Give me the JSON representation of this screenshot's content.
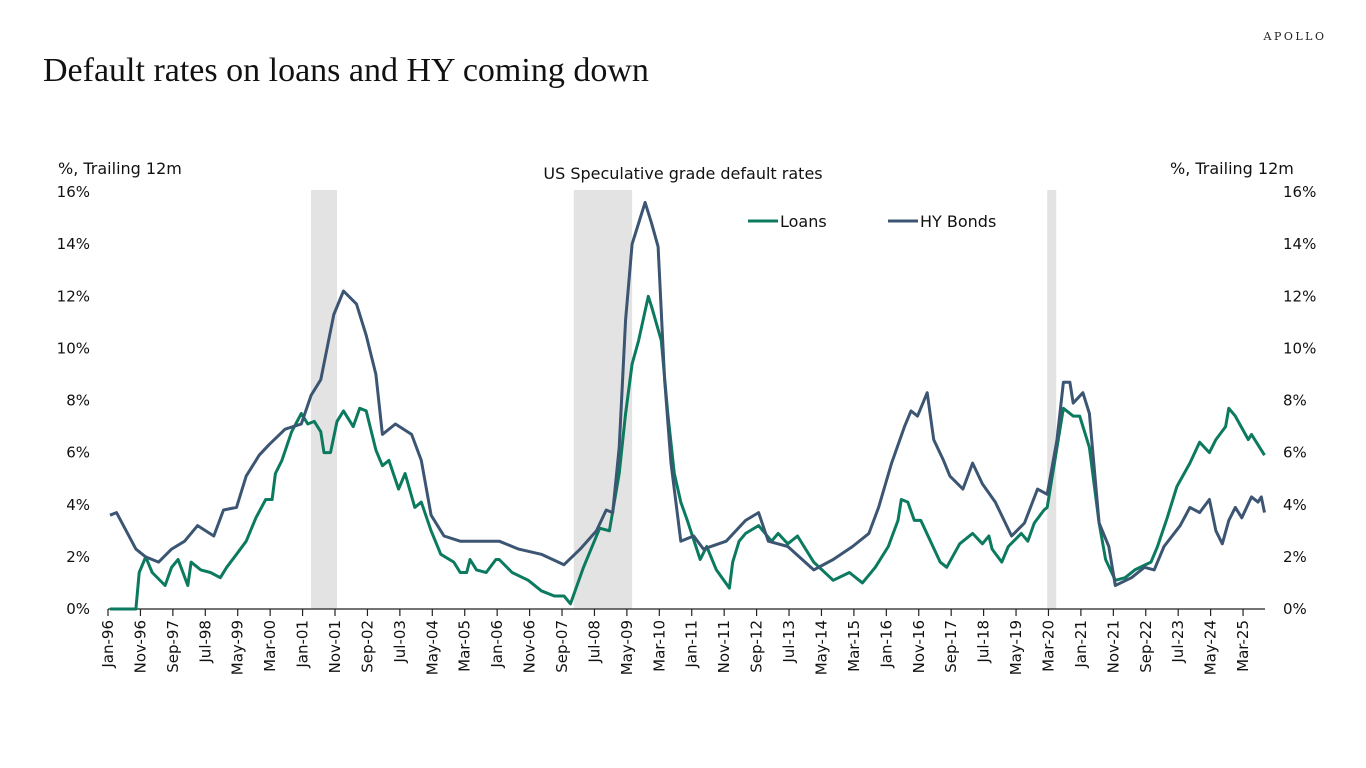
{
  "brand": {
    "logo_text": "APOLLO"
  },
  "slide": {
    "title": "Default rates on loans and HY coming down"
  },
  "chart_data": {
    "type": "line",
    "title": "US Speculative grade default rates",
    "ylabel_left": "%, Trailing 12m",
    "ylabel_right": "%, Trailing 12m",
    "ylim": [
      0,
      16
    ],
    "yticks": [
      "0%",
      "2%",
      "4%",
      "6%",
      "8%",
      "10%",
      "12%",
      "14%",
      "16%"
    ],
    "ytick_values": [
      0,
      2,
      4,
      6,
      8,
      10,
      12,
      14,
      16
    ],
    "xlim": [
      "1996-01",
      "2025-09"
    ],
    "xtick_labels": [
      "Jan-96",
      "Nov-96",
      "Sep-97",
      "Jul-98",
      "May-99",
      "Mar-00",
      "Jan-01",
      "Nov-01",
      "Sep-02",
      "Jul-03",
      "May-04",
      "Mar-05",
      "Jan-06",
      "Nov-06",
      "Sep-07",
      "Jul-08",
      "May-09",
      "Mar-10",
      "Jan-11",
      "Nov-11",
      "Sep-12",
      "Jul-13",
      "May-14",
      "Mar-15",
      "Jan-16",
      "Nov-16",
      "Sep-17",
      "Jul-18",
      "May-19",
      "Mar-20",
      "Jan-21",
      "Nov-21",
      "Sep-22",
      "Jul-23",
      "May-24",
      "Mar-25"
    ],
    "grid": false,
    "legend_position": "top-right",
    "recessions": [
      [
        "2001-03",
        "2001-11"
      ],
      [
        "2007-12",
        "2009-06"
      ],
      [
        "2020-02",
        "2020-04"
      ]
    ],
    "recession_color": "#e3e3e3",
    "series": [
      {
        "name": "Loans",
        "color": "#0b7a5f",
        "points": [
          [
            "1996-01",
            0
          ],
          [
            "1996-09",
            0
          ],
          [
            "1996-10",
            1.4
          ],
          [
            "1996-12",
            2.0
          ],
          [
            "1997-02",
            1.4
          ],
          [
            "1997-06",
            0.9
          ],
          [
            "1997-08",
            1.6
          ],
          [
            "1997-10",
            1.9
          ],
          [
            "1998-01",
            0.9
          ],
          [
            "1998-02",
            1.8
          ],
          [
            "1998-05",
            1.5
          ],
          [
            "1998-08",
            1.4
          ],
          [
            "1998-11",
            1.2
          ],
          [
            "1999-01",
            1.6
          ],
          [
            "1999-04",
            2.1
          ],
          [
            "1999-07",
            2.6
          ],
          [
            "1999-10",
            3.5
          ],
          [
            "2000-01",
            4.2
          ],
          [
            "2000-03",
            4.2
          ],
          [
            "2000-04",
            5.2
          ],
          [
            "2000-06",
            5.7
          ],
          [
            "2000-09",
            6.8
          ],
          [
            "2000-12",
            7.5
          ],
          [
            "2001-02",
            7.1
          ],
          [
            "2001-04",
            7.2
          ],
          [
            "2001-06",
            6.8
          ],
          [
            "2001-07",
            6.0
          ],
          [
            "2001-09",
            6.0
          ],
          [
            "2001-11",
            7.2
          ],
          [
            "2002-01",
            7.6
          ],
          [
            "2002-04",
            7.0
          ],
          [
            "2002-06",
            7.7
          ],
          [
            "2002-08",
            7.6
          ],
          [
            "2002-11",
            6.1
          ],
          [
            "2003-01",
            5.5
          ],
          [
            "2003-03",
            5.7
          ],
          [
            "2003-06",
            4.6
          ],
          [
            "2003-08",
            5.2
          ],
          [
            "2003-11",
            3.9
          ],
          [
            "2004-01",
            4.1
          ],
          [
            "2004-04",
            3.0
          ],
          [
            "2004-07",
            2.1
          ],
          [
            "2004-11",
            1.8
          ],
          [
            "2005-01",
            1.4
          ],
          [
            "2005-03",
            1.4
          ],
          [
            "2005-04",
            1.9
          ],
          [
            "2005-06",
            1.5
          ],
          [
            "2005-09",
            1.4
          ],
          [
            "2005-12",
            1.9
          ],
          [
            "2006-01",
            1.9
          ],
          [
            "2006-05",
            1.4
          ],
          [
            "2006-10",
            1.1
          ],
          [
            "2007-02",
            0.7
          ],
          [
            "2007-06",
            0.5
          ],
          [
            "2007-09",
            0.5
          ],
          [
            "2007-11",
            0.2
          ],
          [
            "2008-03",
            1.6
          ],
          [
            "2008-08",
            3.1
          ],
          [
            "2008-11",
            3.0
          ],
          [
            "2009-02",
            5.2
          ],
          [
            "2009-04",
            7.5
          ],
          [
            "2009-06",
            9.4
          ],
          [
            "2009-08",
            10.3
          ],
          [
            "2009-11",
            12.0
          ],
          [
            "2009-12",
            11.6
          ],
          [
            "2010-03",
            10.3
          ],
          [
            "2010-05",
            7.5
          ],
          [
            "2010-07",
            5.2
          ],
          [
            "2010-09",
            4.1
          ],
          [
            "2010-11",
            3.4
          ],
          [
            "2011-03",
            1.9
          ],
          [
            "2011-05",
            2.4
          ],
          [
            "2011-08",
            1.5
          ],
          [
            "2011-12",
            0.8
          ],
          [
            "2012-01",
            1.8
          ],
          [
            "2012-03",
            2.6
          ],
          [
            "2012-05",
            2.9
          ],
          [
            "2012-09",
            3.2
          ],
          [
            "2013-01",
            2.6
          ],
          [
            "2013-03",
            2.9
          ],
          [
            "2013-06",
            2.5
          ],
          [
            "2013-09",
            2.8
          ],
          [
            "2014-02",
            1.8
          ],
          [
            "2014-08",
            1.1
          ],
          [
            "2015-01",
            1.4
          ],
          [
            "2015-05",
            1.0
          ],
          [
            "2015-09",
            1.6
          ],
          [
            "2016-01",
            2.4
          ],
          [
            "2016-04",
            3.4
          ],
          [
            "2016-05",
            4.2
          ],
          [
            "2016-07",
            4.1
          ],
          [
            "2016-09",
            3.4
          ],
          [
            "2016-11",
            3.4
          ],
          [
            "2017-02",
            2.6
          ],
          [
            "2017-05",
            1.8
          ],
          [
            "2017-07",
            1.6
          ],
          [
            "2017-11",
            2.5
          ],
          [
            "2018-03",
            2.9
          ],
          [
            "2018-06",
            2.5
          ],
          [
            "2018-08",
            2.8
          ],
          [
            "2018-09",
            2.3
          ],
          [
            "2018-12",
            1.8
          ],
          [
            "2019-02",
            2.4
          ],
          [
            "2019-06",
            2.9
          ],
          [
            "2019-08",
            2.6
          ],
          [
            "2019-10",
            3.3
          ],
          [
            "2020-01",
            3.8
          ],
          [
            "2020-02",
            3.9
          ],
          [
            "2020-05",
            6.2
          ],
          [
            "2020-07",
            7.7
          ],
          [
            "2020-10",
            7.4
          ],
          [
            "2020-12",
            7.4
          ],
          [
            "2021-03",
            6.2
          ],
          [
            "2021-06",
            3.3
          ],
          [
            "2021-08",
            1.9
          ],
          [
            "2021-11",
            1.1
          ],
          [
            "2022-02",
            1.2
          ],
          [
            "2022-05",
            1.5
          ],
          [
            "2022-10",
            1.8
          ],
          [
            "2022-12",
            2.4
          ],
          [
            "2023-03",
            3.5
          ],
          [
            "2023-06",
            4.7
          ],
          [
            "2023-10",
            5.6
          ],
          [
            "2024-01",
            6.4
          ],
          [
            "2024-04",
            6.0
          ],
          [
            "2024-06",
            6.5
          ],
          [
            "2024-09",
            7.0
          ],
          [
            "2024-10",
            7.7
          ],
          [
            "2024-12",
            7.4
          ],
          [
            "2025-04",
            6.5
          ],
          [
            "2025-05",
            6.7
          ],
          [
            "2025-09",
            5.9
          ]
        ]
      },
      {
        "name": "HY Bonds",
        "color": "#3b5572",
        "points": [
          [
            "1996-01",
            3.6
          ],
          [
            "1996-03",
            3.7
          ],
          [
            "1996-06",
            3.0
          ],
          [
            "1996-09",
            2.3
          ],
          [
            "1996-12",
            2.0
          ],
          [
            "1997-04",
            1.8
          ],
          [
            "1997-08",
            2.3
          ],
          [
            "1997-12",
            2.6
          ],
          [
            "1998-04",
            3.2
          ],
          [
            "1998-09",
            2.8
          ],
          [
            "1998-12",
            3.8
          ],
          [
            "1999-04",
            3.9
          ],
          [
            "1999-07",
            5.1
          ],
          [
            "1999-11",
            5.9
          ],
          [
            "2000-02",
            6.3
          ],
          [
            "2000-07",
            6.9
          ],
          [
            "2000-12",
            7.1
          ],
          [
            "2001-03",
            8.2
          ],
          [
            "2001-06",
            8.8
          ],
          [
            "2001-10",
            11.3
          ],
          [
            "2002-01",
            12.2
          ],
          [
            "2002-05",
            11.7
          ],
          [
            "2002-08",
            10.5
          ],
          [
            "2002-11",
            9.0
          ],
          [
            "2003-01",
            6.7
          ],
          [
            "2003-05",
            7.1
          ],
          [
            "2003-10",
            6.7
          ],
          [
            "2004-01",
            5.7
          ],
          [
            "2004-04",
            3.6
          ],
          [
            "2004-08",
            2.8
          ],
          [
            "2005-01",
            2.6
          ],
          [
            "2005-07",
            2.6
          ],
          [
            "2006-01",
            2.6
          ],
          [
            "2006-07",
            2.3
          ],
          [
            "2007-02",
            2.1
          ],
          [
            "2007-09",
            1.7
          ],
          [
            "2008-02",
            2.3
          ],
          [
            "2008-07",
            3.0
          ],
          [
            "2008-10",
            3.8
          ],
          [
            "2008-12",
            3.7
          ],
          [
            "2009-02",
            6.2
          ],
          [
            "2009-04",
            11.1
          ],
          [
            "2009-06",
            14.0
          ],
          [
            "2009-10",
            15.6
          ],
          [
            "2009-12",
            14.8
          ],
          [
            "2010-02",
            13.9
          ],
          [
            "2010-04",
            8.8
          ],
          [
            "2010-06",
            5.6
          ],
          [
            "2010-09",
            2.6
          ],
          [
            "2011-01",
            2.8
          ],
          [
            "2011-04",
            2.3
          ],
          [
            "2011-11",
            2.6
          ],
          [
            "2012-05",
            3.4
          ],
          [
            "2012-09",
            3.7
          ],
          [
            "2012-12",
            2.6
          ],
          [
            "2013-06",
            2.4
          ],
          [
            "2014-02",
            1.5
          ],
          [
            "2014-08",
            1.9
          ],
          [
            "2015-02",
            2.4
          ],
          [
            "2015-07",
            2.9
          ],
          [
            "2015-10",
            3.9
          ],
          [
            "2016-02",
            5.6
          ],
          [
            "2016-06",
            7.0
          ],
          [
            "2016-08",
            7.6
          ],
          [
            "2016-10",
            7.4
          ],
          [
            "2017-01",
            8.3
          ],
          [
            "2017-03",
            6.5
          ],
          [
            "2017-06",
            5.7
          ],
          [
            "2017-08",
            5.1
          ],
          [
            "2017-12",
            4.6
          ],
          [
            "2018-03",
            5.6
          ],
          [
            "2018-06",
            4.8
          ],
          [
            "2018-10",
            4.1
          ],
          [
            "2019-03",
            2.8
          ],
          [
            "2019-07",
            3.3
          ],
          [
            "2019-11",
            4.6
          ],
          [
            "2020-02",
            4.4
          ],
          [
            "2020-05",
            6.5
          ],
          [
            "2020-07",
            8.7
          ],
          [
            "2020-09",
            8.7
          ],
          [
            "2020-10",
            7.9
          ],
          [
            "2021-01",
            8.3
          ],
          [
            "2021-03",
            7.5
          ],
          [
            "2021-06",
            3.3
          ],
          [
            "2021-09",
            2.4
          ],
          [
            "2021-11",
            0.9
          ],
          [
            "2022-04",
            1.2
          ],
          [
            "2022-08",
            1.6
          ],
          [
            "2022-11",
            1.5
          ],
          [
            "2023-02",
            2.4
          ],
          [
            "2023-07",
            3.2
          ],
          [
            "2023-10",
            3.9
          ],
          [
            "2024-01",
            3.7
          ],
          [
            "2024-04",
            4.2
          ],
          [
            "2024-06",
            3.0
          ],
          [
            "2024-08",
            2.5
          ],
          [
            "2024-10",
            3.4
          ],
          [
            "2024-12",
            3.9
          ],
          [
            "2025-02",
            3.5
          ],
          [
            "2025-05",
            4.3
          ],
          [
            "2025-07",
            4.1
          ],
          [
            "2025-08",
            4.3
          ],
          [
            "2025-09",
            3.7
          ]
        ]
      }
    ]
  }
}
